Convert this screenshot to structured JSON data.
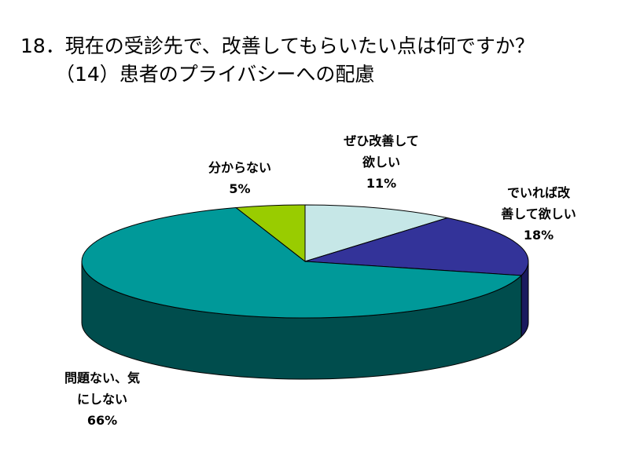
{
  "title_line1": "18．現在の受診先で、改善してもらいたい点は何ですか？",
  "title_line2": "（14）患者のプライバシーへの配慮",
  "chart_data": {
    "type": "pie",
    "title": "18．現在の受診先で、改善してもらいたい点は何ですか？ （14）患者のプライバシーへの配慮",
    "slices": [
      {
        "label_lines": [
          "ぜひ改善して",
          "欲しい"
        ],
        "label": "ぜひ改善して欲しい",
        "value": 11,
        "value_text": "11%",
        "color": "#c6e7e7",
        "side": "#8fb5b5"
      },
      {
        "label_lines": [
          "でいれば改",
          "善して欲しい"
        ],
        "label": "でいれば改善して欲しい",
        "value": 18,
        "value_text": "18%",
        "color": "#333399",
        "side": "#1a1a5e"
      },
      {
        "label_lines": [
          "問題ない、気",
          "にしない"
        ],
        "label": "問題ない、気にしない",
        "value": 66,
        "value_text": "66%",
        "color": "#009999",
        "side": "#004d4d"
      },
      {
        "label_lines": [
          "分からない"
        ],
        "label": "分からない",
        "value": 5,
        "value_text": "5%",
        "color": "#99cc00",
        "side": "#5c7a00"
      }
    ]
  }
}
